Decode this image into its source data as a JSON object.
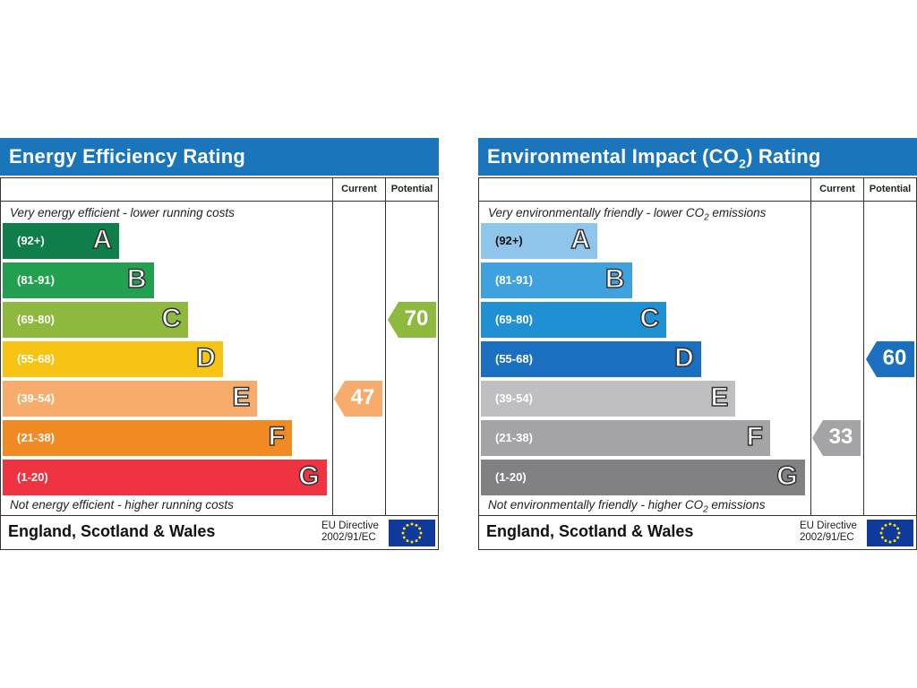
{
  "chart_data": [
    {
      "type": "bar",
      "title": "Energy Efficiency Rating",
      "columns": [
        "Current",
        "Potential"
      ],
      "top_caption": "Very energy efficient - lower running costs",
      "bottom_caption": "Not energy efficient - higher running costs",
      "footer": "England, Scotland & Wales",
      "directive_line1": "EU Directive",
      "directive_line2": "2002/91/EC",
      "bands": [
        {
          "letter": "A",
          "range": "(92+)",
          "color": "#0f7e4a"
        },
        {
          "letter": "B",
          "range": "(81-91)",
          "color": "#23a04f"
        },
        {
          "letter": "C",
          "range": "(69-80)",
          "color": "#8db93f"
        },
        {
          "letter": "D",
          "range": "(55-68)",
          "color": "#f7c414"
        },
        {
          "letter": "E",
          "range": "(39-54)",
          "color": "#f7ac6c"
        },
        {
          "letter": "F",
          "range": "(21-38)",
          "color": "#f08b23"
        },
        {
          "letter": "G",
          "range": "(1-20)",
          "color": "#ef3340"
        }
      ],
      "current": {
        "value": "47",
        "band": "E",
        "color": "#f7ac6c"
      },
      "potential": {
        "value": "70",
        "band": "C",
        "color": "#8db93f"
      }
    },
    {
      "type": "bar",
      "title_parts": [
        "Environmental Impact (CO",
        "2",
        ") Rating"
      ],
      "columns": [
        "Current",
        "Potential"
      ],
      "top_caption_parts": [
        "Very environmentally friendly - lower CO",
        "2",
        " emissions"
      ],
      "bottom_caption_parts": [
        "Not environmentally friendly - higher CO",
        "2",
        " emissions"
      ],
      "footer": "England, Scotland & Wales",
      "directive_line1": "EU Directive",
      "directive_line2": "2002/91/EC",
      "bands": [
        {
          "letter": "A",
          "range": "(92+)",
          "color": "#8fc5ea"
        },
        {
          "letter": "B",
          "range": "(81-91)",
          "color": "#3fa2df"
        },
        {
          "letter": "C",
          "range": "(69-80)",
          "color": "#2090d4"
        },
        {
          "letter": "D",
          "range": "(55-68)",
          "color": "#1a6fc1"
        },
        {
          "letter": "E",
          "range": "(39-54)",
          "color": "#bfbfc1"
        },
        {
          "letter": "F",
          "range": "(21-38)",
          "color": "#a4a4a6"
        },
        {
          "letter": "G",
          "range": "(1-20)",
          "color": "#818183"
        }
      ],
      "current": {
        "value": "33",
        "band": "F",
        "color": "#a4a4a6"
      },
      "potential": {
        "value": "60",
        "band": "D",
        "color": "#1a6fc1"
      }
    }
  ]
}
